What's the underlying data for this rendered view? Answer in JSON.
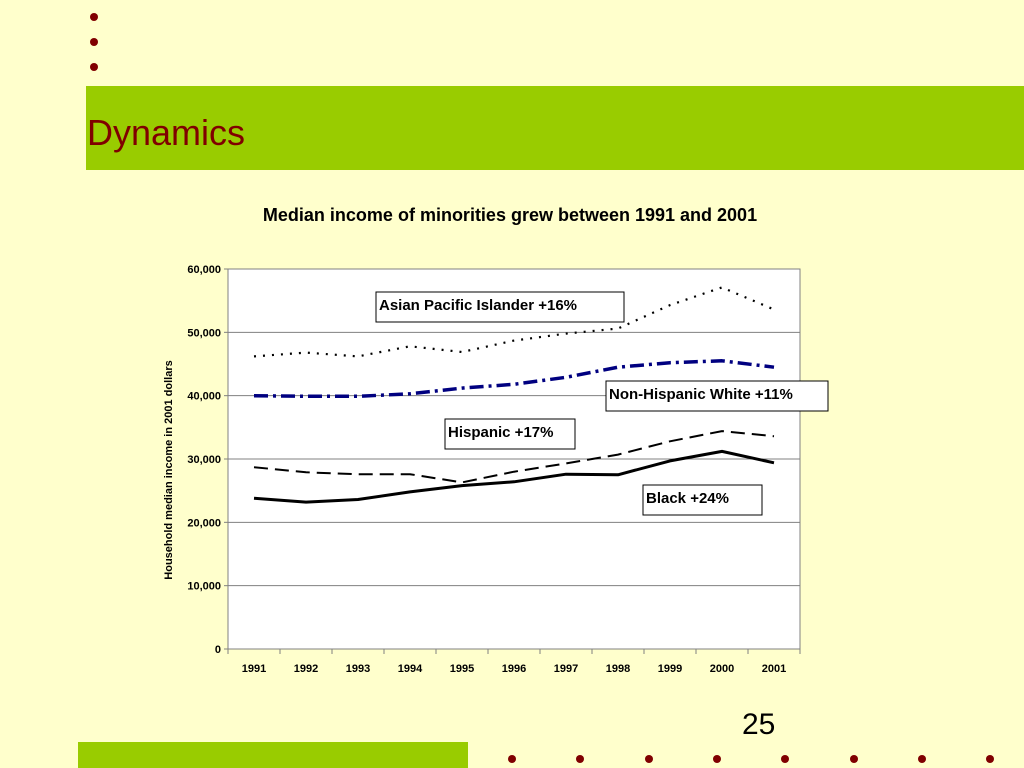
{
  "slide": {
    "title": "Dynamics",
    "page_number": "25",
    "colors": {
      "background": "#FFFFCC",
      "band": "#99CC00",
      "accent": "#800000"
    }
  },
  "chart_data": {
    "type": "line",
    "title": "Median income of minorities grew between 1991 and 2001",
    "xlabel": "",
    "ylabel": "Household median income in 2001 dollars",
    "categories": [
      "1991",
      "1992",
      "1993",
      "1994",
      "1995",
      "1996",
      "1997",
      "1998",
      "1999",
      "2000",
      "2001"
    ],
    "ylim": [
      0,
      60000
    ],
    "yticks": [
      0,
      10000,
      20000,
      30000,
      40000,
      50000,
      60000
    ],
    "ytick_labels": [
      "0",
      "10,000",
      "20,000",
      "30,000",
      "40,000",
      "50,000",
      "60,000"
    ],
    "grid": true,
    "series": [
      {
        "name": "Asian Pacific Islander  +16%",
        "style": "dotted",
        "values": [
          46200,
          46800,
          46200,
          47800,
          46900,
          48700,
          49800,
          50600,
          54300,
          57100,
          53600
        ]
      },
      {
        "name": "Non-Hispanic White +11%",
        "style": "dash-dot",
        "color": "#000080",
        "values": [
          40000,
          39900,
          39900,
          40300,
          41200,
          41800,
          42900,
          44500,
          45200,
          45500,
          44500
        ]
      },
      {
        "name": "Hispanic +17%",
        "style": "dashed",
        "values": [
          28700,
          27900,
          27600,
          27600,
          26300,
          28000,
          29300,
          30700,
          32800,
          34400,
          33600
        ]
      },
      {
        "name": "Black +24%",
        "style": "solid",
        "values": [
          23800,
          23200,
          23600,
          24800,
          25800,
          26400,
          27600,
          27500,
          29700,
          31200,
          29400
        ]
      }
    ]
  }
}
